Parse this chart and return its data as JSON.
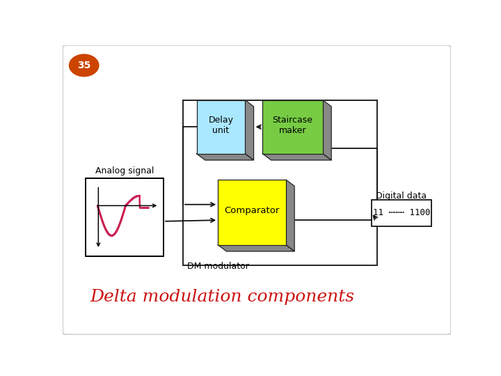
{
  "title": "Delta modulation components",
  "title_color": "#cc1111",
  "title_fontsize": 18,
  "title_style": "italic",
  "page_number": "35",
  "page_num_bg": "#cc4400",
  "page_num_color": "white",
  "dm_label": "DM modulator",
  "digital_label": "Digital data",
  "analog_label": "Analog signal",
  "comparator_label": "Comparator",
  "delay_label": "Delay\nunit",
  "staircase_label": "Staircase\nmaker",
  "digital_text": "11 ⋯⋯⋯ 1100",
  "comparator_color": "#ffff00",
  "delay_color": "#aae8ff",
  "staircase_color": "#77cc44",
  "shadow_color": "#888888",
  "box_edge_color": "#222222",
  "arrow_color": "#111111",
  "signal_color": "#cc2255"
}
